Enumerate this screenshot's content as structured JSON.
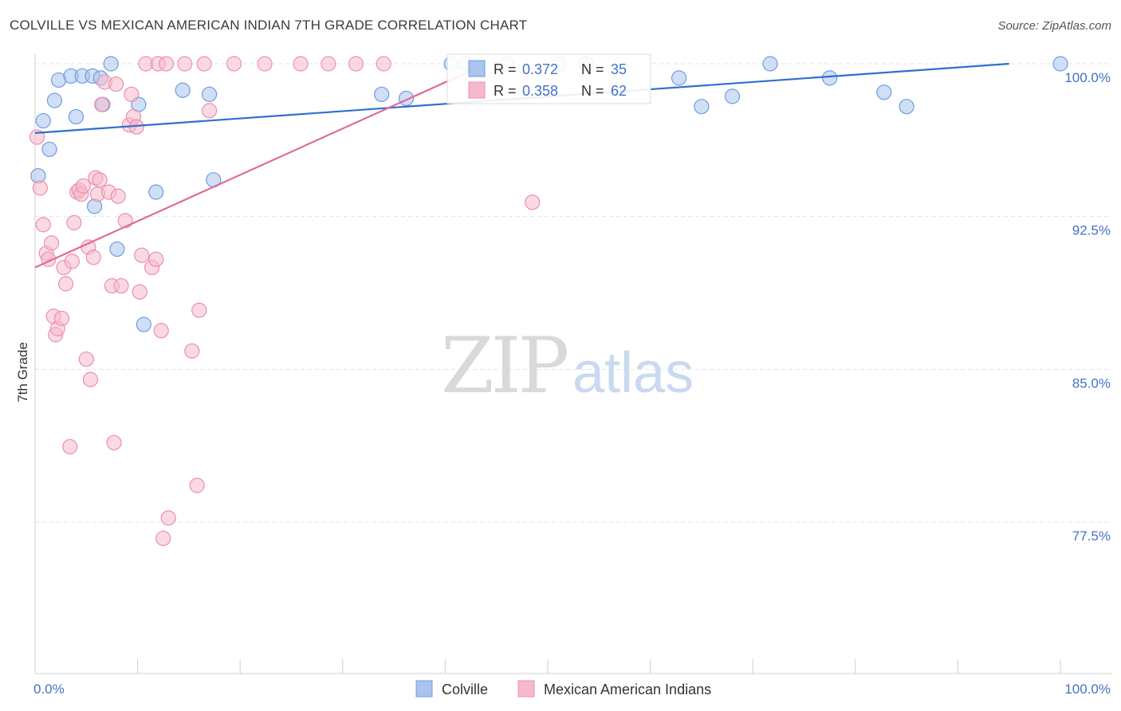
{
  "header": {
    "title": "COLVILLE VS MEXICAN AMERICAN INDIAN 7TH GRADE CORRELATION CHART",
    "source": "Source: ZipAtlas.com"
  },
  "watermark": {
    "zip": "ZIP",
    "atlas": "atlas"
  },
  "colors": {
    "blue_fill": "#a9c4ee",
    "blue_stroke": "#6f9be0",
    "blue_line": "#2f6fce",
    "pink_fill": "#f5b9cb",
    "pink_stroke": "#ec8fae",
    "pink_line": "#e06b97",
    "grid": "#e3e3e3",
    "tick_text": "#4472c4"
  },
  "chart_data": {
    "type": "scatter",
    "xlabel": "",
    "ylabel": "7th Grade",
    "xlim": [
      0,
      100
    ],
    "ylim": [
      70.7,
      101.3
    ],
    "x_tick_labels": [
      {
        "value": 0,
        "label": "0.0%"
      },
      {
        "value": 100,
        "label": "100.0%"
      }
    ],
    "y_tick_labels": [
      {
        "value": 100,
        "label": "100.0%"
      },
      {
        "value": 92.5,
        "label": "92.5%"
      },
      {
        "value": 85,
        "label": "85.0%"
      },
      {
        "value": 77.5,
        "label": "77.5%"
      }
    ],
    "grid": true,
    "legend_position": "top-center",
    "legend": [
      {
        "series": "Colville",
        "r_label": "R = ",
        "r": "0.372",
        "n_label": "N = ",
        "n": "35"
      },
      {
        "series": "Mexican American Indians",
        "r_label": "R = ",
        "r": "0.358",
        "n_label": "N = ",
        "n": "62"
      }
    ],
    "series": [
      {
        "name": "Colville",
        "color": "blue",
        "points": [
          [
            0.3,
            94.5
          ],
          [
            0.8,
            97.2
          ],
          [
            1.4,
            95.8
          ],
          [
            1.9,
            98.2
          ],
          [
            2.3,
            99.2
          ],
          [
            3.5,
            99.4
          ],
          [
            4.0,
            97.4
          ],
          [
            4.6,
            99.4
          ],
          [
            5.6,
            99.4
          ],
          [
            5.8,
            93.0
          ],
          [
            6.4,
            99.3
          ],
          [
            6.6,
            98.0
          ],
          [
            7.4,
            100.0
          ],
          [
            8.0,
            90.9
          ],
          [
            10.1,
            98.0
          ],
          [
            10.6,
            87.2
          ],
          [
            11.8,
            93.7
          ],
          [
            14.4,
            98.7
          ],
          [
            17.0,
            98.5
          ],
          [
            17.4,
            94.3
          ],
          [
            33.8,
            98.5
          ],
          [
            36.2,
            98.3
          ],
          [
            40.6,
            100.0
          ],
          [
            42.0,
            100.0
          ],
          [
            46.0,
            100.0
          ],
          [
            51.1,
            100.0
          ],
          [
            53.7,
            100.0
          ],
          [
            62.8,
            99.3
          ],
          [
            65.0,
            97.9
          ],
          [
            68.0,
            98.4
          ],
          [
            71.7,
            100.0
          ],
          [
            77.5,
            99.3
          ],
          [
            82.8,
            98.6
          ],
          [
            85.0,
            97.9
          ],
          [
            100.0,
            100.0
          ]
        ],
        "trend": [
          [
            0,
            96.6
          ],
          [
            95,
            100.0
          ]
        ]
      },
      {
        "name": "Mexican American Indians",
        "color": "pink",
        "points": [
          [
            0.2,
            96.4
          ],
          [
            0.5,
            93.9
          ],
          [
            0.8,
            92.1
          ],
          [
            1.1,
            90.7
          ],
          [
            1.3,
            90.4
          ],
          [
            1.6,
            91.2
          ],
          [
            1.8,
            87.6
          ],
          [
            2.0,
            86.7
          ],
          [
            2.2,
            87.0
          ],
          [
            2.6,
            87.5
          ],
          [
            2.8,
            90.0
          ],
          [
            3.0,
            89.2
          ],
          [
            3.4,
            81.2
          ],
          [
            3.6,
            90.3
          ],
          [
            3.8,
            92.2
          ],
          [
            4.1,
            93.7
          ],
          [
            4.3,
            93.8
          ],
          [
            4.5,
            93.6
          ],
          [
            4.7,
            94.0
          ],
          [
            5.0,
            85.5
          ],
          [
            5.2,
            91.0
          ],
          [
            5.4,
            84.5
          ],
          [
            5.7,
            90.5
          ],
          [
            5.9,
            94.4
          ],
          [
            6.1,
            93.6
          ],
          [
            6.3,
            94.3
          ],
          [
            6.5,
            98.0
          ],
          [
            6.8,
            99.1
          ],
          [
            7.2,
            93.7
          ],
          [
            7.5,
            89.1
          ],
          [
            7.7,
            81.4
          ],
          [
            7.9,
            99.0
          ],
          [
            8.1,
            93.5
          ],
          [
            8.4,
            89.1
          ],
          [
            8.8,
            92.3
          ],
          [
            9.2,
            97.0
          ],
          [
            9.4,
            98.5
          ],
          [
            9.6,
            97.4
          ],
          [
            9.9,
            96.9
          ],
          [
            10.2,
            88.8
          ],
          [
            10.4,
            90.6
          ],
          [
            10.8,
            100.0
          ],
          [
            11.4,
            90.0
          ],
          [
            11.8,
            90.4
          ],
          [
            12.0,
            100.0
          ],
          [
            12.3,
            86.9
          ],
          [
            12.5,
            76.7
          ],
          [
            12.8,
            100.0
          ],
          [
            13.0,
            77.7
          ],
          [
            14.6,
            100.0
          ],
          [
            15.3,
            85.9
          ],
          [
            15.8,
            79.3
          ],
          [
            16.0,
            87.9
          ],
          [
            16.5,
            100.0
          ],
          [
            17.0,
            97.7
          ],
          [
            19.4,
            100.0
          ],
          [
            22.4,
            100.0
          ],
          [
            25.9,
            100.0
          ],
          [
            28.6,
            100.0
          ],
          [
            31.3,
            100.0
          ],
          [
            34.0,
            100.0
          ],
          [
            48.5,
            93.2
          ]
        ],
        "trend": [
          [
            0,
            90.0
          ],
          [
            44,
            100.0
          ]
        ]
      }
    ]
  }
}
